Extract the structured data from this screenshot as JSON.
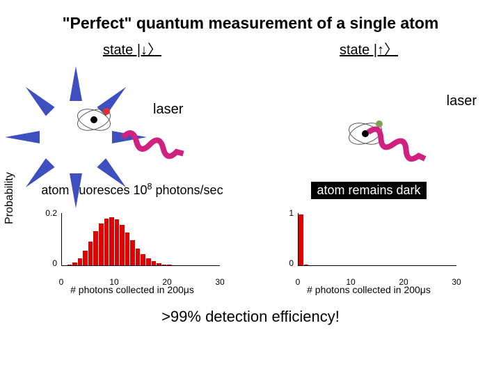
{
  "title": "\"Perfect\" quantum measurement of a single atom",
  "left": {
    "state_label": "state |↓〉",
    "laser_label": "laser",
    "caption_html": "atom fluoresces 10<sup>8</sup> photons/sec",
    "burst_color": "#3e4fbf",
    "electron_color": "#e03030",
    "chart": {
      "type": "histogram",
      "ymax_label": "0.2",
      "ymin_label": "0",
      "ylim": [
        0,
        0.2
      ],
      "xlim": [
        0,
        30
      ],
      "xticks": [
        0,
        10,
        20,
        30
      ],
      "xlabel": "# photons collected in 200μs",
      "bar_color": "#e00000",
      "values": [
        0,
        0.004,
        0.012,
        0.028,
        0.055,
        0.09,
        0.13,
        0.16,
        0.18,
        0.185,
        0.175,
        0.155,
        0.125,
        0.095,
        0.065,
        0.042,
        0.026,
        0.015,
        0.008,
        0.004,
        0.002,
        0,
        0,
        0,
        0,
        0,
        0,
        0,
        0,
        0
      ]
    }
  },
  "right": {
    "state_label": "state |↑〉",
    "laser_label": "laser",
    "caption": "atom remains dark",
    "electron_color": "#7aa352",
    "chart": {
      "type": "histogram",
      "ymax_label": "1",
      "ymin_label": "0",
      "ylim": [
        0,
        1
      ],
      "xlim": [
        0,
        30
      ],
      "xticks": [
        0,
        10,
        20,
        30
      ],
      "xlabel": "# photons collected in 200μs",
      "bar_color": "#e00000",
      "values": [
        0.98,
        0.02,
        0,
        0,
        0,
        0,
        0,
        0,
        0,
        0,
        0,
        0,
        0,
        0,
        0,
        0,
        0,
        0,
        0,
        0,
        0,
        0,
        0,
        0,
        0,
        0,
        0,
        0,
        0,
        0
      ]
    }
  },
  "ylabel": "Probability",
  "footer": ">99% detection efficiency!",
  "laser_color": "#d02080"
}
